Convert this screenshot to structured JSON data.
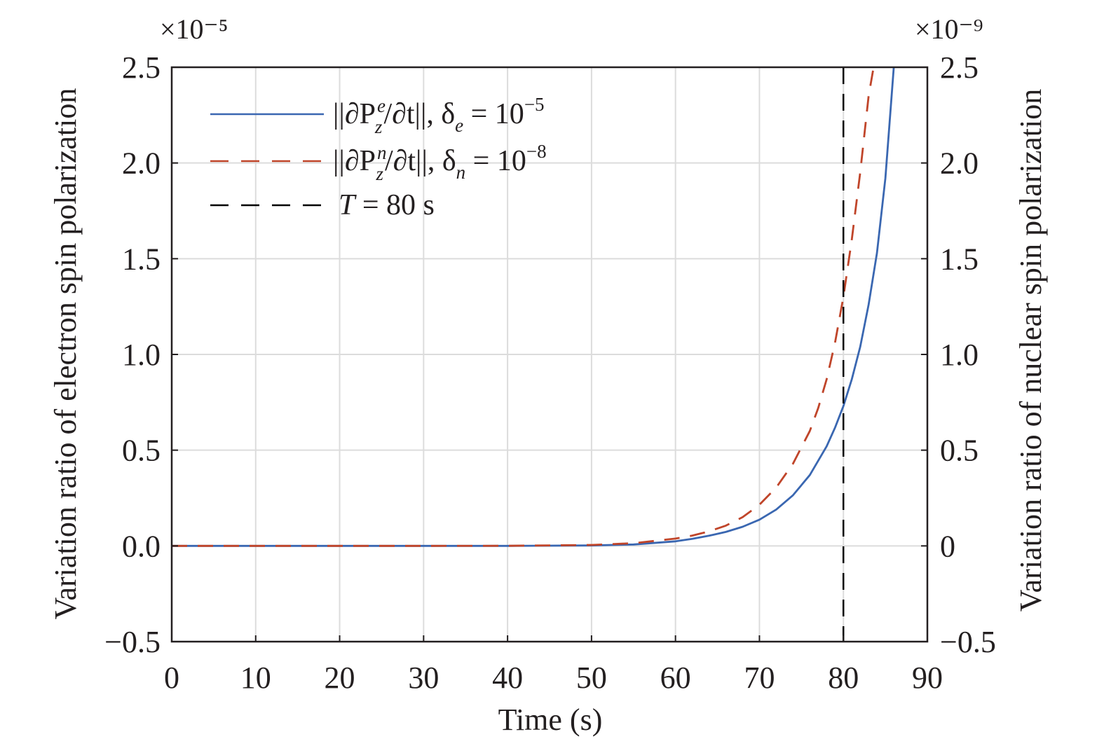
{
  "chart_data": {
    "type": "line",
    "xlabel": "Time (s)",
    "ylabel_left": "Variation ratio of electron spin polarization",
    "ylabel_right": "Variation ratio of nuclear spin polarization",
    "left_exponent": "×10⁻⁵",
    "right_exponent": "×10⁻⁹",
    "xlim": [
      0,
      90
    ],
    "ylim_left": [
      -0.5,
      2.5
    ],
    "ylim_right": [
      -0.5,
      2.5
    ],
    "xticks": [
      "0",
      "10",
      "20",
      "30",
      "40",
      "50",
      "60",
      "70",
      "80",
      "90"
    ],
    "yticks_left": [
      "−0.5",
      "0.0",
      "0.5",
      "1.0",
      "1.5",
      "2.0",
      "2.5"
    ],
    "yticks_right": [
      "−0.5",
      "0",
      "0.5",
      "1.0",
      "1.5",
      "2.0",
      "2.5"
    ],
    "grid": true,
    "legend_position": "top-left",
    "series": [
      {
        "name": "||∂P_z^e/∂t||, δ_e = 10⁻⁵",
        "axis": "left",
        "style": "solid",
        "color": "#3a67b1",
        "x": [
          0,
          10,
          20,
          30,
          40,
          50,
          55,
          60,
          62,
          64,
          66,
          68,
          70,
          72,
          74,
          76,
          78,
          79,
          80,
          81,
          82,
          83,
          84,
          85,
          86
        ],
        "y": [
          0,
          0,
          0,
          0,
          0.0001,
          0.0022,
          0.0076,
          0.024,
          0.037,
          0.053,
          0.073,
          0.1,
          0.137,
          0.19,
          0.265,
          0.37,
          0.52,
          0.617,
          0.73,
          0.87,
          1.04,
          1.26,
          1.53,
          1.92,
          2.5
        ]
      },
      {
        "name": "||∂P_z^n/∂t||, δ_n = 10⁻⁸",
        "axis": "right",
        "style": "dashed",
        "color": "#c0452a",
        "x": [
          0,
          10,
          20,
          30,
          40,
          50,
          55,
          60,
          62,
          64,
          66,
          68,
          70,
          72,
          74,
          76,
          77,
          78,
          79,
          80,
          81,
          82,
          83,
          83.6
        ],
        "y": [
          0,
          0,
          0,
          0,
          0.0004,
          0.005,
          0.014,
          0.038,
          0.054,
          0.076,
          0.106,
          0.15,
          0.215,
          0.305,
          0.43,
          0.6,
          0.72,
          0.87,
          1.06,
          1.3,
          1.6,
          1.95,
          2.35,
          2.5
        ]
      }
    ],
    "annotations": [
      {
        "name": "T = 80 s",
        "type": "vertical-line",
        "x": 80,
        "style": "dashed",
        "color": "#000000"
      }
    ],
    "legend": [
      {
        "main": "||∂P",
        "sub": "z",
        "sup": "e",
        "tail": "/∂t||, δ",
        "sub2": "e",
        "rest": " = 10",
        "exp": "−5"
      },
      {
        "main": "||∂P",
        "sub": "z",
        "sup": "n",
        "tail": "/∂t||, δ",
        "sub2": "n",
        "rest": " = 10",
        "exp": "−8"
      },
      {
        "T": "T",
        "rest": " = 80 s"
      }
    ]
  }
}
